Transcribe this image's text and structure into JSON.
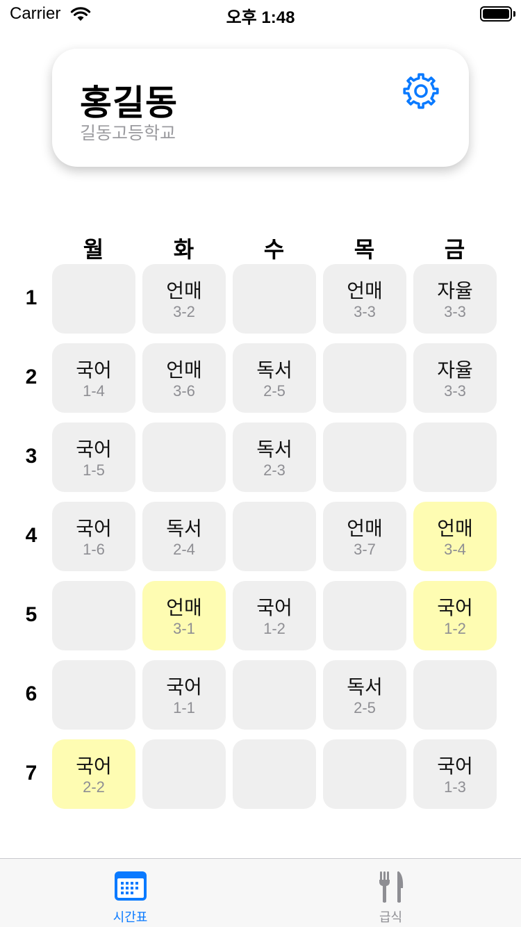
{
  "status_bar": {
    "carrier": "Carrier",
    "time": "오후 1:48",
    "wifi_icon": "wifi-icon",
    "battery_icon": "battery-icon"
  },
  "profile": {
    "name": "홍길동",
    "school": "길동고등학교",
    "settings_icon": "gear-icon",
    "accent_color": "#0a7aff"
  },
  "timetable": {
    "days": [
      "월",
      "화",
      "수",
      "목",
      "금"
    ],
    "periods": [
      "1",
      "2",
      "3",
      "4",
      "5",
      "6",
      "7"
    ],
    "cell_color": "#efefef",
    "highlight_color": "#fefcb2",
    "rows": [
      [
        {
          "subject": "",
          "room": "",
          "highlight": false
        },
        {
          "subject": "언매",
          "room": "3-2",
          "highlight": false
        },
        {
          "subject": "",
          "room": "",
          "highlight": false
        },
        {
          "subject": "언매",
          "room": "3-3",
          "highlight": false
        },
        {
          "subject": "자율",
          "room": "3-3",
          "highlight": false
        }
      ],
      [
        {
          "subject": "국어",
          "room": "1-4",
          "highlight": false
        },
        {
          "subject": "언매",
          "room": "3-6",
          "highlight": false
        },
        {
          "subject": "독서",
          "room": "2-5",
          "highlight": false
        },
        {
          "subject": "",
          "room": "",
          "highlight": false
        },
        {
          "subject": "자율",
          "room": "3-3",
          "highlight": false
        }
      ],
      [
        {
          "subject": "국어",
          "room": "1-5",
          "highlight": false
        },
        {
          "subject": "",
          "room": "",
          "highlight": false
        },
        {
          "subject": "독서",
          "room": "2-3",
          "highlight": false
        },
        {
          "subject": "",
          "room": "",
          "highlight": false
        },
        {
          "subject": "",
          "room": "",
          "highlight": false
        }
      ],
      [
        {
          "subject": "국어",
          "room": "1-6",
          "highlight": false
        },
        {
          "subject": "독서",
          "room": "2-4",
          "highlight": false
        },
        {
          "subject": "",
          "room": "",
          "highlight": false
        },
        {
          "subject": "언매",
          "room": "3-7",
          "highlight": false
        },
        {
          "subject": "언매",
          "room": "3-4",
          "highlight": true
        }
      ],
      [
        {
          "subject": "",
          "room": "",
          "highlight": false
        },
        {
          "subject": "언매",
          "room": "3-1",
          "highlight": true
        },
        {
          "subject": "국어",
          "room": "1-2",
          "highlight": false
        },
        {
          "subject": "",
          "room": "",
          "highlight": false
        },
        {
          "subject": "국어",
          "room": "1-2",
          "highlight": true
        }
      ],
      [
        {
          "subject": "",
          "room": "",
          "highlight": false
        },
        {
          "subject": "국어",
          "room": "1-1",
          "highlight": false
        },
        {
          "subject": "",
          "room": "",
          "highlight": false
        },
        {
          "subject": "독서",
          "room": "2-5",
          "highlight": false
        },
        {
          "subject": "",
          "room": "",
          "highlight": false
        }
      ],
      [
        {
          "subject": "국어",
          "room": "2-2",
          "highlight": true
        },
        {
          "subject": "",
          "room": "",
          "highlight": false
        },
        {
          "subject": "",
          "room": "",
          "highlight": false
        },
        {
          "subject": "",
          "room": "",
          "highlight": false
        },
        {
          "subject": "국어",
          "room": "1-3",
          "highlight": false
        }
      ]
    ]
  },
  "tab_bar": {
    "tabs": [
      {
        "label": "시간표",
        "icon": "calendar-icon",
        "selected": true
      },
      {
        "label": "급식",
        "icon": "fork-knife-icon",
        "selected": false
      }
    ]
  }
}
